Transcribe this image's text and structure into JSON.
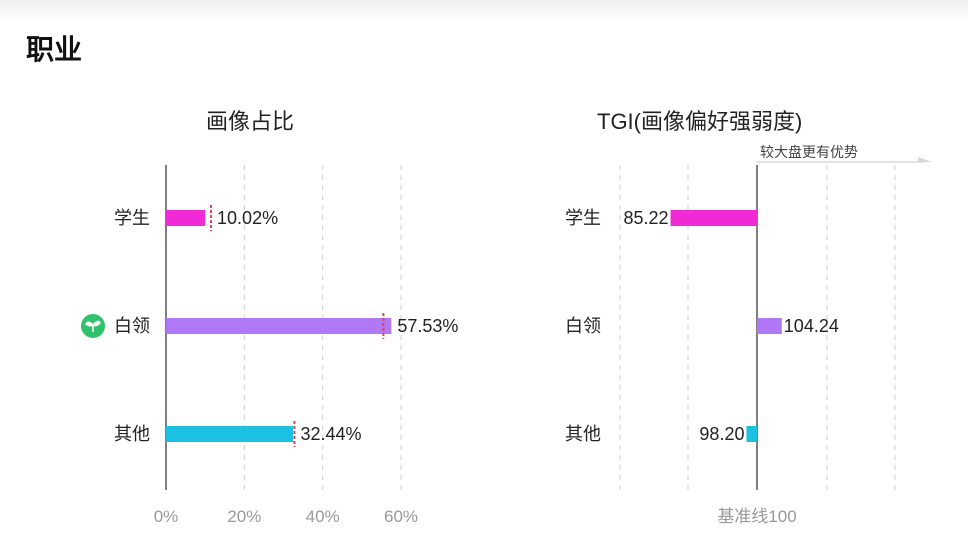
{
  "page": {
    "title": "职业"
  },
  "colors": {
    "student": "#f02bd6",
    "white_collar": "#b077f7",
    "other": "#1cc0e0",
    "grid": "#cfcfcf",
    "axis": "#555555",
    "marker": "#e0405a",
    "badge": "#2fc26b"
  },
  "chart_data": [
    {
      "type": "bar",
      "orientation": "horizontal",
      "title": "画像占比",
      "categories": [
        "学生",
        "白领",
        "其他"
      ],
      "values": [
        10.02,
        57.53,
        32.44
      ],
      "value_labels": [
        "10.02%",
        "57.53%",
        "32.44%"
      ],
      "reference_markers": [
        11.5,
        55.5,
        32.8
      ],
      "xlim": [
        0,
        60
      ],
      "xticks": [
        "0%",
        "20%",
        "40%",
        "60%"
      ],
      "grid": true
    },
    {
      "type": "bar",
      "orientation": "horizontal",
      "title": "TGI(画像偏好强弱度)",
      "categories": [
        "学生",
        "白领",
        "其他"
      ],
      "values": [
        85.22,
        104.24,
        98.2
      ],
      "value_labels": [
        "85.22",
        "104.24",
        "98.20"
      ],
      "baseline": 100,
      "baseline_label": "基准线100",
      "advantage_hint": "较大盘更有优势",
      "grid": true
    }
  ],
  "icons": {
    "highlight_badge": "sprout-icon"
  }
}
